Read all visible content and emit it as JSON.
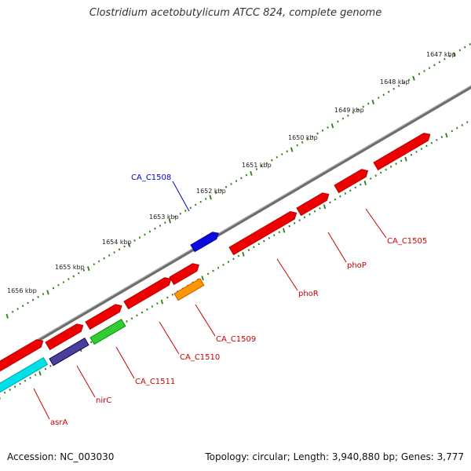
{
  "title": "Clostridium acetobutylicum ATCC 824, complete genome",
  "footer": {
    "accession": "Accession: NC_003030",
    "summary": "Topology: circular; Length: 3,940,880 bp; Genes: 3,777"
  },
  "colors": {
    "backbone": "#777777",
    "tick": "#2e7d12",
    "red_gene": "#ee0000",
    "blue_gene": "#0a0adf",
    "label_red": "#cc0000",
    "label_blue": "#0000cc"
  },
  "scale": {
    "unit": "kbp",
    "labels": [
      "1647 kbp",
      "1648 kbp",
      "1649 kbp",
      "1650 kbp",
      "1651 kbp",
      "1652 kbp",
      "1653 kbp",
      "1654 kbp",
      "1655 kbp",
      "1656 kbp"
    ]
  },
  "genes": [
    {
      "label": "CA_C1505",
      "color": "#ee0000"
    },
    {
      "label": "phoP",
      "color": "#ee0000"
    },
    {
      "label": "phoR",
      "color": "#ee0000"
    },
    {
      "label": "CA_C1508",
      "color": "#0a0adf"
    },
    {
      "label": "CA_C1509",
      "color": "#ff9500"
    },
    {
      "label": "CA_C1510",
      "color": "#ee0000"
    },
    {
      "label": "CA_C1511",
      "color": "#33cc33"
    },
    {
      "label": "nirC",
      "color": "#4a3f9a"
    },
    {
      "label": "asrA",
      "color": "#00e0e8"
    }
  ]
}
